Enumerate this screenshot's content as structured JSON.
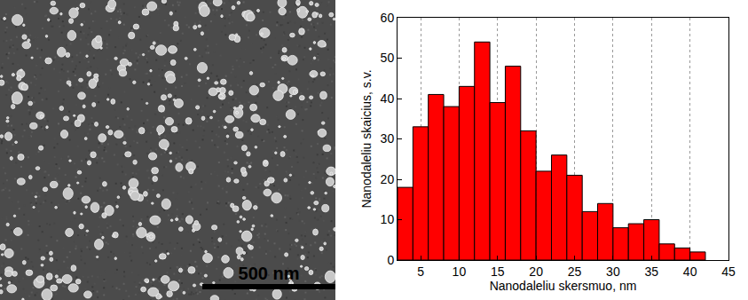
{
  "image": {
    "scale_bar": "500 nm"
  },
  "chart_data": {
    "type": "histogram",
    "x_label": "Nanodaleliu skersmuo, nm",
    "y_label": "Nanodaleliu skaicius, s.v.",
    "bins": [
      2,
      4,
      6,
      8,
      10,
      12,
      14,
      16,
      18,
      20,
      22,
      24,
      26,
      28,
      30,
      32,
      34,
      36,
      38,
      40,
      42
    ],
    "values": [
      18,
      33,
      41,
      38,
      43,
      54,
      39,
      48,
      32,
      22,
      26,
      21,
      12,
      14,
      8,
      9,
      10,
      4,
      3,
      2
    ],
    "color": "#ff0000",
    "xlim": [
      2,
      45
    ],
    "xticks": [
      5,
      10,
      15,
      20,
      25,
      30,
      35,
      40,
      45
    ],
    "ylim": [
      0,
      60
    ],
    "yticks": [
      0,
      10,
      20,
      30,
      40,
      50,
      60
    ],
    "grid": true
  }
}
